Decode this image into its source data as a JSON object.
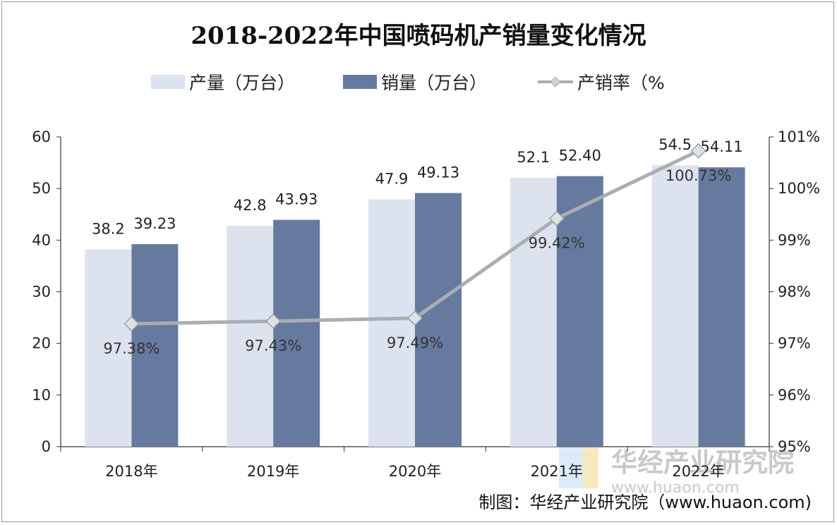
{
  "chart_data": {
    "type": "bar",
    "title": "2018-2022年中国喷码机产销量变化情况",
    "categories": [
      "2018年",
      "2019年",
      "2020年",
      "2021年",
      "2022年"
    ],
    "series": [
      {
        "name": "产量（万台）",
        "kind": "bar",
        "axis": "left",
        "color": "#dde3ee",
        "values": [
          38.2,
          42.8,
          47.9,
          52.1,
          54.5
        ],
        "labels": [
          "38.2",
          "42.8",
          "47.9",
          "52.1",
          "54.5"
        ]
      },
      {
        "name": "销量（万台）",
        "kind": "bar",
        "axis": "left",
        "color": "#66799f",
        "values": [
          39.23,
          43.93,
          49.13,
          52.4,
          54.11
        ],
        "labels": [
          "39.23",
          "43.93",
          "49.13",
          "52.40",
          "54.11"
        ]
      },
      {
        "name": "产销率（%",
        "kind": "line",
        "axis": "right",
        "color": "#a8aeb3",
        "values": [
          97.38,
          97.43,
          97.49,
          99.42,
          100.73
        ],
        "labels": [
          "97.38%",
          "97.43%",
          "97.49%",
          "99.42%",
          "100.73%"
        ]
      }
    ],
    "y_left": {
      "range": [
        0,
        60
      ],
      "ticks": [
        "0",
        "10",
        "20",
        "30",
        "40",
        "50",
        "60"
      ]
    },
    "y_right": {
      "range": [
        95,
        101
      ],
      "ticks": [
        "95%",
        "96%",
        "97%",
        "98%",
        "99%",
        "100%",
        "101%"
      ]
    },
    "grid": false,
    "legend_position": "top"
  },
  "source": "制图：华经产业研究院（www.huaon.com)",
  "watermark": {
    "name": "华经产业研究院",
    "url": "www.huaon.com"
  }
}
